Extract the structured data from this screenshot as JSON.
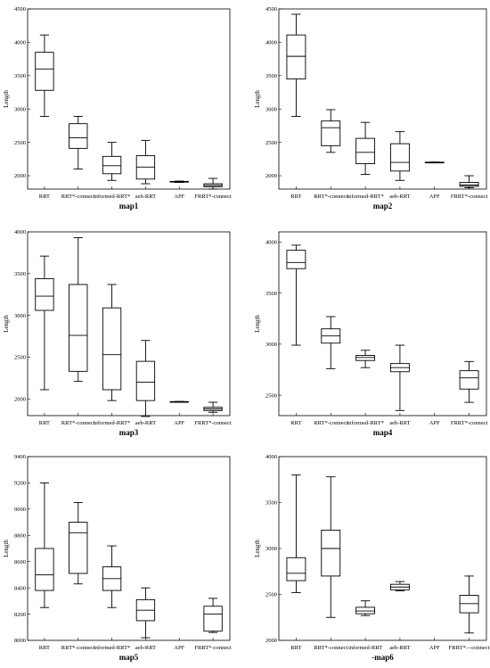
{
  "chart_data": [
    {
      "type": "box",
      "title": "map1",
      "ylabel": "Length",
      "ylim": [
        1800,
        4500
      ],
      "yticks": [
        2000,
        2500,
        3000,
        3500,
        4000,
        4500
      ],
      "categories": [
        "RRT",
        "RRT*-connect",
        "informed-RRT*",
        "aeb-RRT",
        "APF",
        "FRRT*-connect"
      ],
      "boxes": [
        {
          "min": 2890,
          "q1": 3280,
          "median": 3600,
          "q3": 3850,
          "max": 4110
        },
        {
          "min": 2100,
          "q1": 2410,
          "median": 2570,
          "q3": 2780,
          "max": 2890
        },
        {
          "min": 1930,
          "q1": 2030,
          "median": 2150,
          "q3": 2290,
          "max": 2500
        },
        {
          "min": 1880,
          "q1": 1950,
          "median": 2130,
          "q3": 2300,
          "max": 2530
        },
        {
          "min": 1900,
          "q1": 1905,
          "median": 1910,
          "q3": 1915,
          "max": 1920
        },
        {
          "min": 1800,
          "q1": 1835,
          "median": 1855,
          "q3": 1880,
          "max": 1960
        }
      ]
    },
    {
      "type": "box",
      "title": "map2",
      "ylabel": "Length",
      "ylim": [
        1800,
        4500
      ],
      "yticks": [
        2000,
        2500,
        3000,
        3500,
        4000,
        4500
      ],
      "categories": [
        "RRT",
        "RRT*-connect",
        "informed-RRT*",
        "aeb-RRT",
        "APF",
        "FRRT*-connect"
      ],
      "boxes": [
        {
          "min": 2890,
          "q1": 3450,
          "median": 3790,
          "q3": 4110,
          "max": 4420
        },
        {
          "min": 2350,
          "q1": 2450,
          "median": 2720,
          "q3": 2820,
          "max": 2990
        },
        {
          "min": 2020,
          "q1": 2180,
          "median": 2350,
          "q3": 2560,
          "max": 2800
        },
        {
          "min": 1930,
          "q1": 2070,
          "median": 2200,
          "q3": 2480,
          "max": 2660
        },
        {
          "min": 2195,
          "q1": 2198,
          "median": 2200,
          "q3": 2203,
          "max": 2206
        },
        {
          "min": 1820,
          "q1": 1840,
          "median": 1860,
          "q3": 1900,
          "max": 2000
        }
      ]
    },
    {
      "type": "box",
      "title": "map3",
      "ylabel": "Length",
      "ylim": [
        1800,
        4000
      ],
      "yticks": [
        2000,
        2500,
        3000,
        3500,
        4000
      ],
      "categories": [
        "RRT",
        "RRT*-connect",
        "informed-RRT*",
        "aeb-RRT",
        "APF",
        "FRRT*-connect"
      ],
      "boxes": [
        {
          "min": 2110,
          "q1": 3060,
          "median": 3230,
          "q3": 3440,
          "max": 3710
        },
        {
          "min": 2210,
          "q1": 2330,
          "median": 2760,
          "q3": 3370,
          "max": 3930
        },
        {
          "min": 1980,
          "q1": 2110,
          "median": 2530,
          "q3": 3090,
          "max": 3370
        },
        {
          "min": 1790,
          "q1": 1980,
          "median": 2200,
          "q3": 2450,
          "max": 2700
        },
        {
          "min": 1960,
          "q1": 1962,
          "median": 1965,
          "q3": 1968,
          "max": 1970
        },
        {
          "min": 1840,
          "q1": 1860,
          "median": 1880,
          "q3": 1900,
          "max": 1960
        }
      ]
    },
    {
      "type": "box",
      "title": "map4",
      "ylabel": "Length",
      "ylim": [
        2300,
        4100
      ],
      "yticks": [
        2500,
        3000,
        3500,
        4000
      ],
      "categories": [
        "RRT",
        "RRT*-connect",
        "informed-RRT*",
        "aeb-RRT",
        "APF",
        "FRRT*-connect"
      ],
      "boxes": [
        {
          "min": 2990,
          "q1": 3740,
          "median": 3800,
          "q3": 3920,
          "max": 3970
        },
        {
          "min": 2760,
          "q1": 3010,
          "median": 3080,
          "q3": 3150,
          "max": 3270
        },
        {
          "min": 2770,
          "q1": 2840,
          "median": 2870,
          "q3": 2890,
          "max": 2940
        },
        {
          "min": 2350,
          "q1": 2730,
          "median": 2770,
          "q3": 2810,
          "max": 2990
        },
        null,
        {
          "min": 2430,
          "q1": 2560,
          "median": 2670,
          "q3": 2740,
          "max": 2830
        }
      ]
    },
    {
      "type": "box",
      "title": "map5",
      "ylabel": "Length",
      "ylim": [
        8000,
        9400
      ],
      "yticks": [
        8000,
        8200,
        8400,
        8600,
        8800,
        9000,
        9200,
        9400
      ],
      "categories": [
        "RRT",
        "RRT*-connect",
        "informed-RRT*",
        "aeb-RRT",
        "APF",
        "FRRT*-connect"
      ],
      "boxes": [
        {
          "min": 8250,
          "q1": 8380,
          "median": 8500,
          "q3": 8700,
          "max": 9200
        },
        {
          "min": 8430,
          "q1": 8510,
          "median": 8820,
          "q3": 8900,
          "max": 9050
        },
        {
          "min": 8250,
          "q1": 8380,
          "median": 8470,
          "q3": 8560,
          "max": 8720
        },
        {
          "min": 8020,
          "q1": 8150,
          "median": 8230,
          "q3": 8310,
          "max": 8400
        },
        null,
        {
          "min": 8060,
          "q1": 8070,
          "median": 8200,
          "q3": 8260,
          "max": 8320
        }
      ]
    },
    {
      "type": "box",
      "title": "-map6",
      "ylabel": "Length",
      "ylim": [
        2000,
        4000
      ],
      "yticks": [
        2000,
        2500,
        3000,
        3500,
        4000
      ],
      "categories": [
        "RRT",
        "RRT*-connect",
        "informed-RRT",
        "aeb-RRT",
        "APF",
        "FRRT*—connect"
      ],
      "boxes": [
        {
          "min": 2520,
          "q1": 2650,
          "median": 2730,
          "q3": 2900,
          "max": 3800
        },
        {
          "min": 2250,
          "q1": 2700,
          "median": 3000,
          "q3": 3200,
          "max": 3780
        },
        {
          "min": 2270,
          "q1": 2290,
          "median": 2320,
          "q3": 2360,
          "max": 2430
        },
        {
          "min": 2540,
          "q1": 2550,
          "median": 2580,
          "q3": 2610,
          "max": 2640
        },
        null,
        {
          "min": 2080,
          "q1": 2300,
          "median": 2400,
          "q3": 2490,
          "max": 2700
        }
      ]
    }
  ]
}
